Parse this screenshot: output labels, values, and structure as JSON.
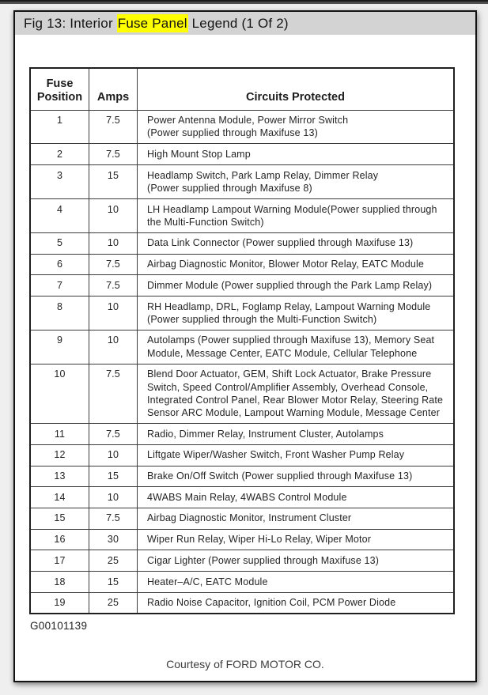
{
  "window": {
    "title_prefix": "Fig 13: Interior ",
    "title_highlight": "Fuse Panel",
    "title_suffix": " Legend (1 Of 2)",
    "highlight_color": "#ffff00",
    "titlebar_bg": "#d3d3d3"
  },
  "table": {
    "headers": [
      "Fuse\nPosition",
      "Amps",
      "Circuits Protected"
    ],
    "rows": [
      {
        "position": "1",
        "amps": "7.5",
        "circuits": "Power Antenna Module, Power Mirror Switch\n(Power supplied through Maxifuse 13)"
      },
      {
        "position": "2",
        "amps": "7.5",
        "circuits": "High Mount Stop Lamp"
      },
      {
        "position": "3",
        "amps": "15",
        "circuits": "Headlamp Switch, Park Lamp Relay, Dimmer Relay\n(Power supplied through Maxifuse 8)"
      },
      {
        "position": "4",
        "amps": "10",
        "circuits": "LH Headlamp Lampout Warning Module(Power supplied through\nthe Multi-Function Switch)"
      },
      {
        "position": "5",
        "amps": "10",
        "circuits": "Data Link Connector (Power supplied through Maxifuse 13)"
      },
      {
        "position": "6",
        "amps": "7.5",
        "circuits": "Airbag Diagnostic Monitor, Blower Motor Relay, EATC Module"
      },
      {
        "position": "7",
        "amps": "7.5",
        "circuits": "Dimmer Module (Power supplied through the Park Lamp Relay)"
      },
      {
        "position": "8",
        "amps": "10",
        "circuits": "RH Headlamp, DRL, Foglamp Relay, Lampout Warning Module\n(Power supplied through the Multi-Function Switch)"
      },
      {
        "position": "9",
        "amps": "10",
        "circuits": "Autolamps (Power supplied through Maxifuse 13), Memory Seat\nModule, Message Center, EATC Module, Cellular Telephone"
      },
      {
        "position": "10",
        "amps": "7.5",
        "circuits": "Blend Door Actuator, GEM, Shift Lock Actuator, Brake Pressure\nSwitch, Speed Control/Amplifier Assembly, Overhead Console,\nIntegrated Control Panel, Rear Blower Motor Relay, Steering Rate\nSensor ARC Module, Lampout Warning Module, Message Center"
      },
      {
        "position": "11",
        "amps": "7.5",
        "circuits": "Radio, Dimmer Relay, Instrument Cluster, Autolamps"
      },
      {
        "position": "12",
        "amps": "10",
        "circuits": "Liftgate Wiper/Washer Switch, Front Washer Pump Relay"
      },
      {
        "position": "13",
        "amps": "15",
        "circuits": "Brake On/Off Switch (Power supplied through Maxifuse 13)"
      },
      {
        "position": "14",
        "amps": "10",
        "circuits": "4WABS Main Relay, 4WABS Control Module"
      },
      {
        "position": "15",
        "amps": "7.5",
        "circuits": "Airbag Diagnostic Monitor, Instrument Cluster"
      },
      {
        "position": "16",
        "amps": "30",
        "circuits": "Wiper Run Relay, Wiper Hi-Lo Relay, Wiper Motor"
      },
      {
        "position": "17",
        "amps": "25",
        "circuits": "Cigar Lighter (Power supplied through Maxifuse 13)"
      },
      {
        "position": "18",
        "amps": "15",
        "circuits": "Heater–A/C, EATC Module"
      },
      {
        "position": "19",
        "amps": "25",
        "circuits": "Radio Noise Capacitor, Ignition Coil, PCM Power Diode"
      }
    ]
  },
  "footer": {
    "figure_code": "G00101139",
    "courtesy": "Courtesy of FORD MOTOR CO."
  }
}
